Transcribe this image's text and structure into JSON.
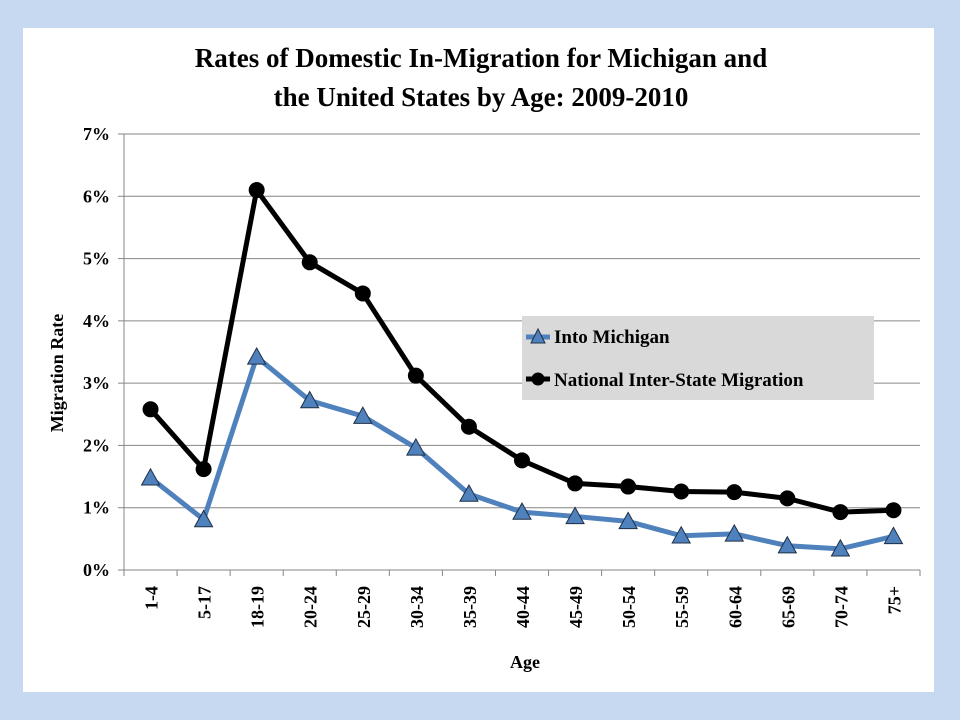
{
  "chart_data": {
    "type": "line",
    "title_lines": [
      "Rates of Domestic In-Migration for Michigan and",
      "the United States by Age: 2009-2010"
    ],
    "xlabel": "Age",
    "ylabel": "Migration Rate",
    "ylim": [
      0,
      0.07
    ],
    "y_ticks": [
      {
        "value": 0,
        "label": "0%"
      },
      {
        "value": 0.01,
        "label": "1%"
      },
      {
        "value": 0.02,
        "label": "2%"
      },
      {
        "value": 0.03,
        "label": "3%"
      },
      {
        "value": 0.04,
        "label": "4%"
      },
      {
        "value": 0.05,
        "label": "5%"
      },
      {
        "value": 0.06,
        "label": "6%"
      },
      {
        "value": 0.07,
        "label": "7%"
      }
    ],
    "grid": true,
    "legend_position": "right-center",
    "categories": [
      "1-4",
      "5-17",
      "18-19",
      "20-24",
      "25-29",
      "30-34",
      "35-39",
      "40-44",
      "45-49",
      "50-54",
      "55-59",
      "60-64",
      "65-69",
      "70-74",
      "75+"
    ],
    "series": [
      {
        "name": "Into Michigan",
        "color": "#4f81bd",
        "marker": "triangle",
        "values": [
          0.0148,
          0.0081,
          0.0342,
          0.0272,
          0.0247,
          0.0196,
          0.0122,
          0.0093,
          0.0086,
          0.0078,
          0.0055,
          0.0058,
          0.0039,
          0.0034,
          0.0054
        ]
      },
      {
        "name": "National Inter-State Migration",
        "color": "#000000",
        "marker": "circle",
        "values": [
          0.0258,
          0.0162,
          0.061,
          0.0494,
          0.0444,
          0.0312,
          0.023,
          0.0176,
          0.0139,
          0.0134,
          0.0126,
          0.0125,
          0.0115,
          0.0093,
          0.0096
        ]
      }
    ]
  }
}
